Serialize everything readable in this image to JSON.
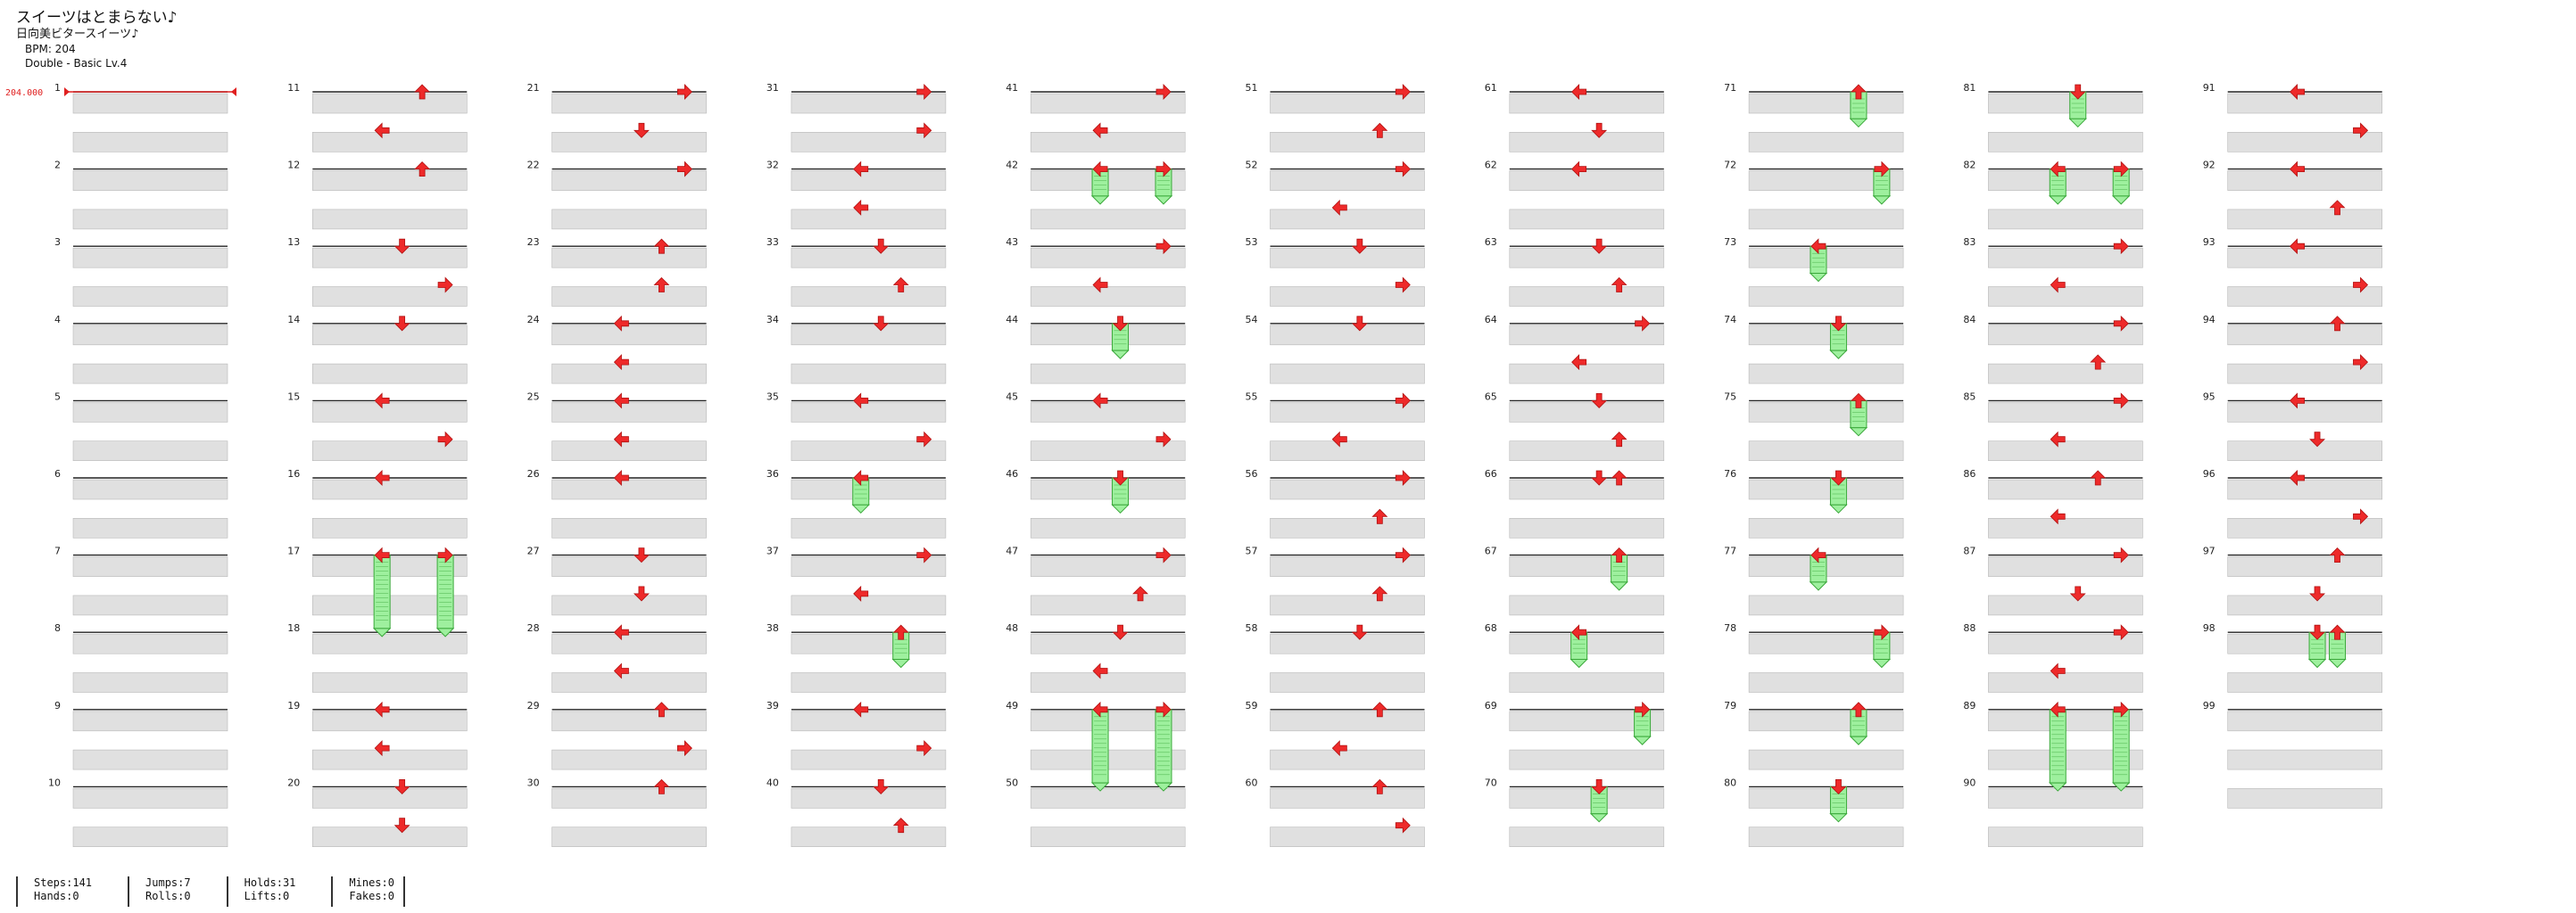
{
  "song": {
    "title": "スイーツはとまらない♪",
    "artist": "日向美ビタースイーツ♪",
    "bpm_label": "BPM: 204",
    "difficulty": "Double - Basic  Lv.4"
  },
  "bpm_marker": {
    "label": "204.000"
  },
  "measures": {
    "first": 1,
    "last": 99,
    "per_column": 10
  },
  "colors": {
    "arrow": "#ee2a2a",
    "arrow_stroke": "#b01010",
    "hold": "#9ef09e",
    "hold_stroke": "#3aa83a",
    "beat_band": "#e0e0e0",
    "measure_line": "#222222",
    "bpm_marker": "#e02020"
  },
  "notes": [
    {
      "m": 11,
      "b": 0,
      "d": "up"
    },
    {
      "m": 11,
      "b": 1,
      "d": "left"
    },
    {
      "m": 12,
      "b": 0,
      "d": "up"
    },
    {
      "m": 13,
      "b": 0,
      "d": "down"
    },
    {
      "m": 13,
      "b": 1,
      "d": "right"
    },
    {
      "m": 14,
      "b": 0,
      "d": "down"
    },
    {
      "m": 15,
      "b": 0,
      "d": "left"
    },
    {
      "m": 15,
      "b": 1,
      "d": "right"
    },
    {
      "m": 16,
      "b": 0,
      "d": "left"
    },
    {
      "m": 17,
      "b": 0,
      "d": "right",
      "hold": 1.9
    },
    {
      "m": 17,
      "b": 0,
      "d": "left",
      "hold": 1.9
    },
    {
      "m": 19,
      "b": 0,
      "d": "left"
    },
    {
      "m": 19,
      "b": 1,
      "d": "left"
    },
    {
      "m": 20,
      "b": 0,
      "d": "down"
    },
    {
      "m": 20,
      "b": 1,
      "d": "down"
    },
    {
      "m": 21,
      "b": 0,
      "d": "right"
    },
    {
      "m": 21,
      "b": 1,
      "d": "down"
    },
    {
      "m": 22,
      "b": 0,
      "d": "right"
    },
    {
      "m": 23,
      "b": 0,
      "d": "up"
    },
    {
      "m": 23,
      "b": 1,
      "d": "up"
    },
    {
      "m": 24,
      "b": 0,
      "d": "left"
    },
    {
      "m": 24,
      "b": 1,
      "d": "left"
    },
    {
      "m": 25,
      "b": 0,
      "d": "left"
    },
    {
      "m": 25,
      "b": 1,
      "d": "left"
    },
    {
      "m": 26,
      "b": 0,
      "d": "left"
    },
    {
      "m": 27,
      "b": 0,
      "d": "down"
    },
    {
      "m": 27,
      "b": 1,
      "d": "down"
    },
    {
      "m": 28,
      "b": 0,
      "d": "left"
    },
    {
      "m": 28,
      "b": 1,
      "d": "left"
    },
    {
      "m": 29,
      "b": 0,
      "d": "up"
    },
    {
      "m": 29,
      "b": 1,
      "d": "right"
    },
    {
      "m": 30,
      "b": 0,
      "d": "up"
    },
    {
      "m": 31,
      "b": 0,
      "d": "right"
    },
    {
      "m": 31,
      "b": 1,
      "d": "right"
    },
    {
      "m": 32,
      "b": 0,
      "d": "left"
    },
    {
      "m": 32,
      "b": 1,
      "d": "left"
    },
    {
      "m": 33,
      "b": 0,
      "d": "down"
    },
    {
      "m": 33,
      "b": 1,
      "d": "up"
    },
    {
      "m": 34,
      "b": 0,
      "d": "down"
    },
    {
      "m": 35,
      "b": 0,
      "d": "left"
    },
    {
      "m": 35,
      "b": 1,
      "d": "right"
    },
    {
      "m": 36,
      "b": 0,
      "d": "left",
      "hold": 0.7
    },
    {
      "m": 37,
      "b": 0,
      "d": "right"
    },
    {
      "m": 37,
      "b": 1,
      "d": "left"
    },
    {
      "m": 38,
      "b": 0,
      "d": "up",
      "hold": 0.7
    },
    {
      "m": 39,
      "b": 0,
      "d": "left"
    },
    {
      "m": 39,
      "b": 1,
      "d": "right"
    },
    {
      "m": 40,
      "b": 0,
      "d": "down"
    },
    {
      "m": 40,
      "b": 1,
      "d": "up"
    },
    {
      "m": 41,
      "b": 0,
      "d": "right"
    },
    {
      "m": 41,
      "b": 1,
      "d": "left"
    },
    {
      "m": 42,
      "b": 0,
      "d": "right",
      "hold": 0.7
    },
    {
      "m": 42,
      "b": 0,
      "d": "left",
      "hold": 0.7
    },
    {
      "m": 43,
      "b": 0,
      "d": "right"
    },
    {
      "m": 43,
      "b": 1,
      "d": "left"
    },
    {
      "m": 44,
      "b": 0,
      "d": "down",
      "hold": 0.7
    },
    {
      "m": 45,
      "b": 0,
      "d": "left"
    },
    {
      "m": 45,
      "b": 1,
      "d": "right"
    },
    {
      "m": 46,
      "b": 0,
      "d": "down",
      "hold": 0.7
    },
    {
      "m": 47,
      "b": 0,
      "d": "right"
    },
    {
      "m": 47,
      "b": 1,
      "d": "up"
    },
    {
      "m": 48,
      "b": 0,
      "d": "down"
    },
    {
      "m": 48,
      "b": 1,
      "d": "left"
    },
    {
      "m": 49,
      "b": 0,
      "d": "right",
      "hold": 1.9
    },
    {
      "m": 49,
      "b": 0,
      "d": "left",
      "hold": 1.9
    },
    {
      "m": 51,
      "b": 0,
      "d": "right"
    },
    {
      "m": 51,
      "b": 1,
      "d": "up"
    },
    {
      "m": 52,
      "b": 0,
      "d": "right"
    },
    {
      "m": 52,
      "b": 1,
      "d": "left"
    },
    {
      "m": 53,
      "b": 0,
      "d": "down"
    },
    {
      "m": 53,
      "b": 1,
      "d": "right"
    },
    {
      "m": 54,
      "b": 0,
      "d": "down"
    },
    {
      "m": 55,
      "b": 0,
      "d": "right"
    },
    {
      "m": 55,
      "b": 1,
      "d": "left"
    },
    {
      "m": 56,
      "b": 0,
      "d": "right"
    },
    {
      "m": 56,
      "b": 1,
      "d": "up"
    },
    {
      "m": 57,
      "b": 0,
      "d": "right"
    },
    {
      "m": 57,
      "b": 1,
      "d": "up"
    },
    {
      "m": 58,
      "b": 0,
      "d": "down"
    },
    {
      "m": 59,
      "b": 0,
      "d": "up"
    },
    {
      "m": 59,
      "b": 1,
      "d": "left"
    },
    {
      "m": 60,
      "b": 0,
      "d": "up"
    },
    {
      "m": 60,
      "b": 1,
      "d": "right"
    },
    {
      "m": 61,
      "b": 0,
      "d": "left"
    },
    {
      "m": 61,
      "b": 1,
      "d": "down"
    },
    {
      "m": 62,
      "b": 0,
      "d": "left"
    },
    {
      "m": 63,
      "b": 0,
      "d": "down"
    },
    {
      "m": 63,
      "b": 1,
      "d": "up"
    },
    {
      "m": 64,
      "b": 0,
      "d": "right"
    },
    {
      "m": 64,
      "b": 1,
      "d": "left"
    },
    {
      "m": 65,
      "b": 0,
      "d": "down"
    },
    {
      "m": 65,
      "b": 1,
      "d": "up"
    },
    {
      "m": 66,
      "b": 0,
      "d": "down"
    },
    {
      "m": 66,
      "b": 0,
      "d": "up"
    },
    {
      "m": 67,
      "b": 0,
      "d": "up",
      "hold": 0.7
    },
    {
      "m": 68,
      "b": 0,
      "d": "left",
      "hold": 0.7
    },
    {
      "m": 69,
      "b": 0,
      "d": "right",
      "hold": 0.7
    },
    {
      "m": 70,
      "b": 0,
      "d": "down",
      "hold": 0.7
    },
    {
      "m": 71,
      "b": 0,
      "d": "up",
      "hold": 0.7
    },
    {
      "m": 72,
      "b": 0,
      "d": "right",
      "hold": 0.7
    },
    {
      "m": 73,
      "b": 0,
      "d": "left",
      "hold": 0.7
    },
    {
      "m": 74,
      "b": 0,
      "d": "down",
      "hold": 0.7
    },
    {
      "m": 75,
      "b": 0,
      "d": "up",
      "hold": 0.7
    },
    {
      "m": 76,
      "b": 0,
      "d": "down",
      "hold": 0.7
    },
    {
      "m": 77,
      "b": 0,
      "d": "left",
      "hold": 0.7
    },
    {
      "m": 78,
      "b": 0,
      "d": "right",
      "hold": 0.7
    },
    {
      "m": 79,
      "b": 0,
      "d": "up",
      "hold": 0.7
    },
    {
      "m": 80,
      "b": 0,
      "d": "down",
      "hold": 0.7
    },
    {
      "m": 81,
      "b": 0,
      "d": "down",
      "hold": 0.7
    },
    {
      "m": 82,
      "b": 0,
      "d": "right",
      "hold": 0.7
    },
    {
      "m": 82,
      "b": 0,
      "d": "left",
      "hold": 0.7
    },
    {
      "m": 83,
      "b": 0,
      "d": "right"
    },
    {
      "m": 83,
      "b": 1,
      "d": "left"
    },
    {
      "m": 84,
      "b": 0,
      "d": "right"
    },
    {
      "m": 84,
      "b": 1,
      "d": "up"
    },
    {
      "m": 85,
      "b": 0,
      "d": "right"
    },
    {
      "m": 85,
      "b": 1,
      "d": "left"
    },
    {
      "m": 86,
      "b": 0,
      "d": "up"
    },
    {
      "m": 86,
      "b": 1,
      "d": "left"
    },
    {
      "m": 87,
      "b": 0,
      "d": "right"
    },
    {
      "m": 87,
      "b": 1,
      "d": "down"
    },
    {
      "m": 88,
      "b": 0,
      "d": "right"
    },
    {
      "m": 88,
      "b": 1,
      "d": "left"
    },
    {
      "m": 89,
      "b": 0,
      "d": "right",
      "hold": 1.9
    },
    {
      "m": 89,
      "b": 0,
      "d": "left",
      "hold": 1.9
    },
    {
      "m": 91,
      "b": 0,
      "d": "left"
    },
    {
      "m": 91,
      "b": 1,
      "d": "right"
    },
    {
      "m": 92,
      "b": 0,
      "d": "left"
    },
    {
      "m": 92,
      "b": 1,
      "d": "up"
    },
    {
      "m": 93,
      "b": 0,
      "d": "left"
    },
    {
      "m": 93,
      "b": 1,
      "d": "right"
    },
    {
      "m": 94,
      "b": 0,
      "d": "up"
    },
    {
      "m": 94,
      "b": 1,
      "d": "right"
    },
    {
      "m": 95,
      "b": 0,
      "d": "left"
    },
    {
      "m": 95,
      "b": 1,
      "d": "down"
    },
    {
      "m": 96,
      "b": 0,
      "d": "left"
    },
    {
      "m": 96,
      "b": 1,
      "d": "right"
    },
    {
      "m": 97,
      "b": 0,
      "d": "up"
    },
    {
      "m": 97,
      "b": 1,
      "d": "down"
    },
    {
      "m": 98,
      "b": 0,
      "d": "down",
      "hold": 0.7
    },
    {
      "m": 98,
      "b": 0,
      "d": "up",
      "hold": 0.7
    }
  ],
  "stats": {
    "steps": "Steps:141",
    "hands": "Hands:0",
    "jumps": "Jumps:7",
    "rolls": "Rolls:0",
    "holds": "Holds:31",
    "lifts": "Lifts:0",
    "mines": "Mines:0",
    "fakes": "Fakes:0"
  }
}
